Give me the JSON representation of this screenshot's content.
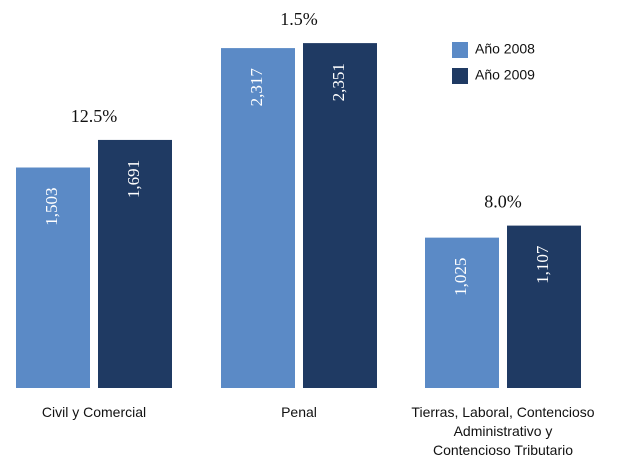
{
  "chart_data": {
    "type": "bar",
    "categories": [
      "Civil y Comercial",
      "Penal",
      "Tierras, Laboral, Contencioso\nAdministrativo y\nContencioso Tributario"
    ],
    "series": [
      {
        "name": "Año 2008",
        "color": "#5b8ac6",
        "values": [
          1503,
          2317,
          1025
        ],
        "value_labels": [
          "1,503",
          "2,317",
          "1,025"
        ]
      },
      {
        "name": "Año 2009",
        "color": "#1f3a63",
        "values": [
          1691,
          2351,
          1107
        ],
        "value_labels": [
          "1,691",
          "2,351",
          "1,107"
        ]
      }
    ],
    "annotations": [
      "12.5%",
      "1.5%",
      "8.0%"
    ],
    "legend": "top-right"
  }
}
